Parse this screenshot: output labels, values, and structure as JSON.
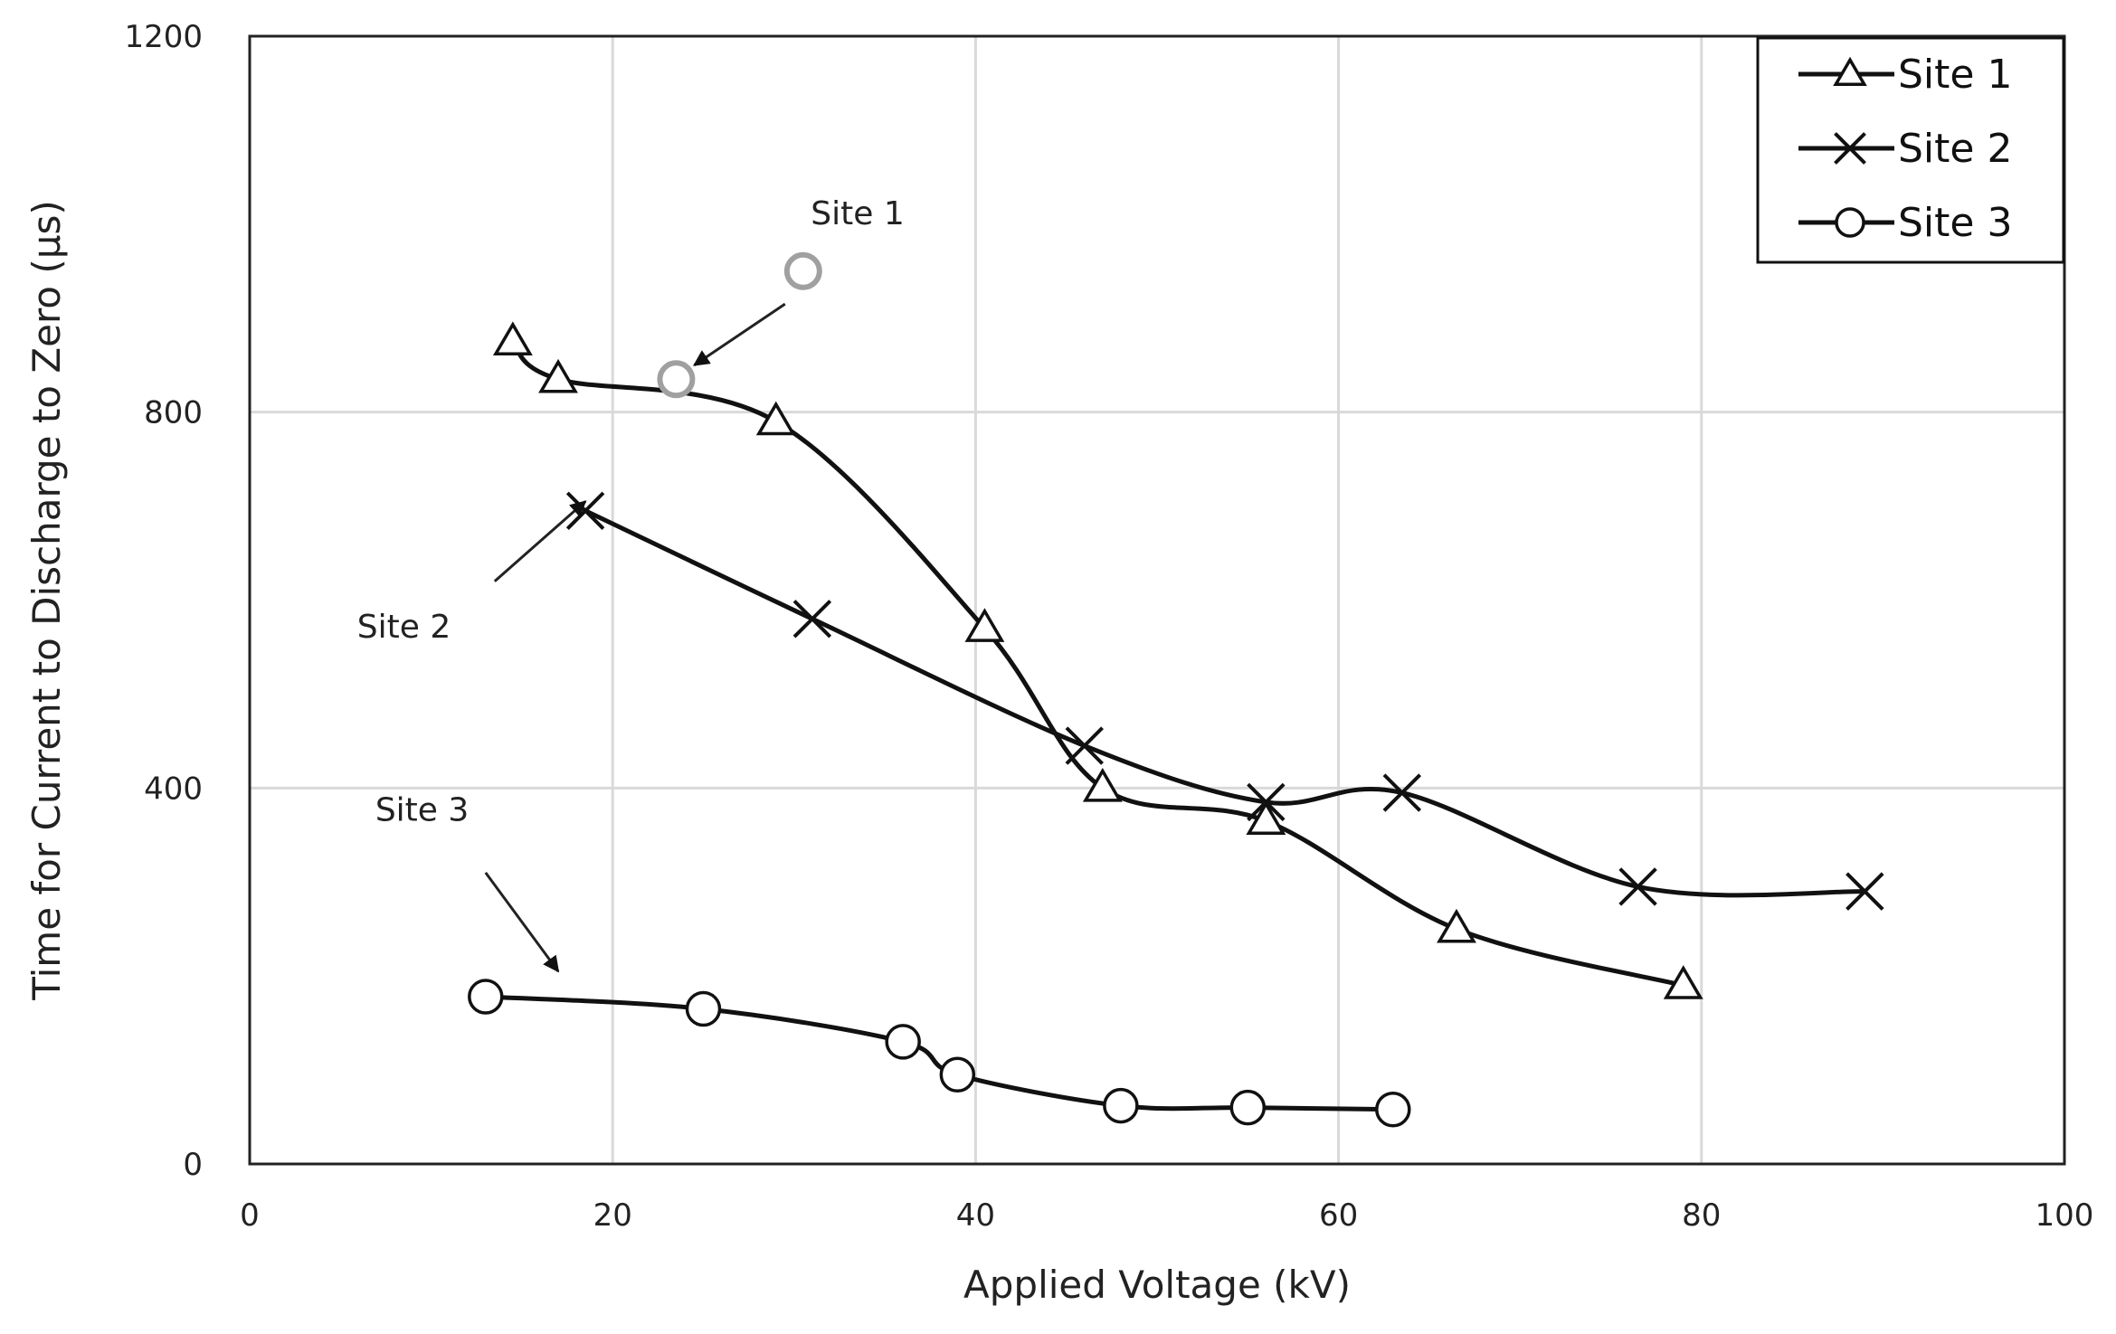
{
  "chart_data": {
    "type": "line",
    "title": "",
    "xlabel": "Applied Voltage (kV)",
    "ylabel": "Time for Current to Discharge to Zero (μs)",
    "xlim": [
      0,
      100
    ],
    "ylim": [
      0,
      1200
    ],
    "xticks": [
      "0",
      "20",
      "40",
      "60",
      "80",
      "100"
    ],
    "yticks": [
      "0",
      "400",
      "800",
      "1200"
    ],
    "grid": true,
    "legend_position": "top-right",
    "series": [
      {
        "name": "Site 1",
        "marker": "triangle",
        "x": [
          14.5,
          17,
          29,
          40.5,
          47,
          56,
          66.5,
          79
        ],
        "y": [
          875,
          835,
          790,
          570,
          400,
          365,
          250,
          190
        ]
      },
      {
        "name": "Site 2",
        "marker": "x",
        "x": [
          18.5,
          31,
          46,
          56,
          63.5,
          76.5,
          89
        ],
        "y": [
          695,
          580,
          445,
          385,
          395,
          295,
          290
        ]
      },
      {
        "name": "Site 3",
        "marker": "circle",
        "x": [
          13,
          25,
          36,
          39,
          48,
          55,
          63
        ],
        "y": [
          178,
          165,
          130,
          95,
          62,
          60,
          58
        ]
      }
    ],
    "outlier_points": [
      {
        "x": 30.5,
        "y": 950
      },
      {
        "x": 23.5,
        "y": 835
      }
    ],
    "annotations": [
      {
        "text": "Site 1",
        "x": 33.5,
        "y": 1000,
        "arrow_from": [
          29.5,
          915
        ],
        "arrow_to": [
          24.5,
          850
        ]
      },
      {
        "text": "Site 2",
        "x": 8.5,
        "y": 560,
        "arrow_from": [
          13.5,
          620
        ],
        "arrow_to": [
          18.5,
          705
        ]
      },
      {
        "text": "Site 3",
        "x": 9.5,
        "y": 365,
        "arrow_from": [
          13,
          310
        ],
        "arrow_to": [
          17,
          205
        ]
      }
    ]
  }
}
